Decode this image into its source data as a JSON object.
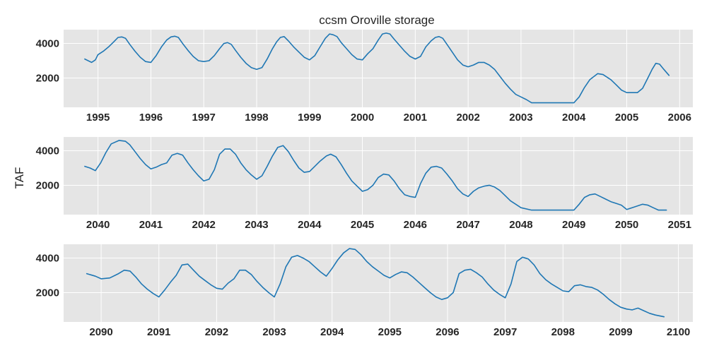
{
  "chart_data": {
    "type": "line",
    "title": "ccsm Oroville storage",
    "ylabel": "TAF",
    "grid": true,
    "colors": {
      "line": "#1f77b4",
      "panel": "#e5e5e5",
      "grid": "#ffffff"
    },
    "panels": [
      {
        "xlim": [
          1994.35,
          2006.25
        ],
        "ylim": [
          300,
          4800
        ],
        "xticks": [
          1995,
          1996,
          1997,
          1998,
          1999,
          2000,
          2001,
          2002,
          2003,
          2004,
          2005,
          2006
        ],
        "xtick_labels": [
          "1995",
          "1996",
          "1997",
          "1998",
          "1999",
          "2000",
          "2001",
          "2002",
          "2003",
          "2004",
          "2005",
          "2006"
        ],
        "yticks": [
          2000,
          4000
        ],
        "ytick_labels": [
          "2000",
          "4000"
        ],
        "series": [
          {
            "x": [
              1994.75,
              1994.88,
              1994.95,
              1995.0,
              1995.1,
              1995.2,
              1995.3,
              1995.38,
              1995.45,
              1995.52,
              1995.6,
              1995.7,
              1995.8,
              1995.9,
              1996.0,
              1996.1,
              1996.2,
              1996.3,
              1996.38,
              1996.45,
              1996.52,
              1996.6,
              1996.7,
              1996.8,
              1996.9,
              1997.0,
              1997.1,
              1997.2,
              1997.3,
              1997.38,
              1997.45,
              1997.52,
              1997.6,
              1997.7,
              1997.8,
              1997.9,
              1998.0,
              1998.1,
              1998.2,
              1998.3,
              1998.38,
              1998.45,
              1998.52,
              1998.6,
              1998.7,
              1998.8,
              1998.9,
              1999.0,
              1999.1,
              1999.2,
              1999.3,
              1999.38,
              1999.45,
              1999.52,
              1999.6,
              1999.7,
              1999.8,
              1999.9,
              2000.0,
              2000.1,
              2000.2,
              2000.3,
              2000.38,
              2000.45,
              2000.52,
              2000.6,
              2000.7,
              2000.8,
              2000.9,
              2001.0,
              2001.1,
              2001.2,
              2001.3,
              2001.38,
              2001.45,
              2001.52,
              2001.6,
              2001.7,
              2001.8,
              2001.9,
              2002.0,
              2002.1,
              2002.2,
              2002.3,
              2002.4,
              2002.5,
              2002.6,
              2002.7,
              2002.8,
              2002.9,
              2003.0,
              2003.1,
              2003.2,
              2003.3,
              2003.4,
              2003.6,
              2003.8,
              2004.0,
              2004.1,
              2004.2,
              2004.3,
              2004.45,
              2004.55,
              2004.7,
              2004.8,
              2004.9,
              2005.0,
              2005.1,
              2005.2,
              2005.3,
              2005.4,
              2005.48,
              2005.55,
              2005.62,
              2005.7,
              2005.8
            ],
            "y": [
              3100,
              2900,
              3050,
              3350,
              3550,
              3800,
              4100,
              4350,
              4380,
              4300,
              3950,
              3550,
              3200,
              2950,
              2900,
              3300,
              3800,
              4200,
              4380,
              4420,
              4350,
              4000,
              3600,
              3250,
              3000,
              2950,
              3000,
              3300,
              3700,
              4000,
              4050,
              3950,
              3600,
              3200,
              2850,
              2600,
              2500,
              2600,
              3100,
              3700,
              4100,
              4350,
              4400,
              4150,
              3800,
              3500,
              3200,
              3050,
              3300,
              3800,
              4300,
              4550,
              4500,
              4400,
              4050,
              3700,
              3350,
              3100,
              3050,
              3400,
              3700,
              4200,
              4550,
              4600,
              4550,
              4250,
              3900,
              3550,
              3250,
              3100,
              3250,
              3800,
              4150,
              4350,
              4400,
              4300,
              3950,
              3500,
              3050,
              2750,
              2650,
              2750,
              2900,
              2900,
              2750,
              2500,
              2100,
              1700,
              1350,
              1050,
              900,
              750,
              560,
              560,
              560,
              560,
              560,
              560,
              900,
              1450,
              1900,
              2250,
              2200,
              1900,
              1600,
              1300,
              1150,
              1150,
              1150,
              1400,
              2000,
              2500,
              2850,
              2800,
              2500,
              2150
            ]
          }
        ]
      },
      {
        "xlim": [
          2039.35,
          2051.25
        ],
        "ylim": [
          300,
          4800
        ],
        "xticks": [
          2040,
          2041,
          2042,
          2043,
          2044,
          2045,
          2046,
          2047,
          2048,
          2049,
          2050,
          2051
        ],
        "xtick_labels": [
          "2040",
          "2041",
          "2042",
          "2043",
          "2044",
          "2045",
          "2046",
          "2047",
          "2048",
          "2049",
          "2050",
          "2051"
        ],
        "yticks": [
          2000,
          4000
        ],
        "ytick_labels": [
          "2000",
          "4000"
        ],
        "series": [
          {
            "x": [
              2039.75,
              2039.85,
              2039.95,
              2040.05,
              2040.15,
              2040.25,
              2040.4,
              2040.52,
              2040.6,
              2040.7,
              2040.8,
              2040.9,
              2041.0,
              2041.1,
              2041.2,
              2041.3,
              2041.4,
              2041.5,
              2041.6,
              2041.7,
              2041.8,
              2041.9,
              2042.0,
              2042.1,
              2042.2,
              2042.3,
              2042.4,
              2042.5,
              2042.6,
              2042.7,
              2042.8,
              2042.9,
              2043.0,
              2043.1,
              2043.2,
              2043.3,
              2043.4,
              2043.5,
              2043.6,
              2043.7,
              2043.8,
              2043.9,
              2044.0,
              2044.1,
              2044.2,
              2044.32,
              2044.4,
              2044.5,
              2044.6,
              2044.7,
              2044.8,
              2044.9,
              2045.0,
              2045.1,
              2045.2,
              2045.3,
              2045.4,
              2045.5,
              2045.6,
              2045.7,
              2045.8,
              2045.9,
              2046.0,
              2046.1,
              2046.2,
              2046.3,
              2046.4,
              2046.5,
              2046.6,
              2046.7,
              2046.8,
              2046.9,
              2047.0,
              2047.1,
              2047.2,
              2047.3,
              2047.4,
              2047.5,
              2047.6,
              2047.7,
              2047.8,
              2047.9,
              2048.0,
              2048.2,
              2048.4,
              2048.6,
              2048.8,
              2049.0,
              2049.1,
              2049.2,
              2049.3,
              2049.4,
              2049.5,
              2049.6,
              2049.7,
              2049.8,
              2049.9,
              2050.0,
              2050.1,
              2050.2,
              2050.3,
              2050.4,
              2050.5,
              2050.6,
              2050.75
            ],
            "y": [
              3100,
              3000,
              2850,
              3300,
              3900,
              4400,
              4600,
              4550,
              4350,
              3950,
              3550,
              3200,
              2950,
              3050,
              3200,
              3300,
              3750,
              3850,
              3750,
              3300,
              2900,
              2550,
              2250,
              2350,
              2900,
              3800,
              4100,
              4100,
              3800,
              3300,
              2900,
              2600,
              2350,
              2550,
              3100,
              3700,
              4200,
              4300,
              3950,
              3450,
              3000,
              2750,
              2800,
              3100,
              3400,
              3700,
              3800,
              3650,
              3200,
              2700,
              2250,
              1950,
              1650,
              1750,
              2000,
              2450,
              2650,
              2600,
              2250,
              1800,
              1450,
              1350,
              1300,
              2100,
              2700,
              3050,
              3100,
              3000,
              2650,
              2250,
              1800,
              1500,
              1350,
              1650,
              1850,
              1950,
              2000,
              1900,
              1700,
              1400,
              1100,
              900,
              700,
              560,
              560,
              560,
              560,
              560,
              900,
              1300,
              1450,
              1500,
              1350,
              1200,
              1050,
              950,
              850,
              600,
              700,
              800,
              900,
              850,
              700,
              560,
              560
            ]
          }
        ]
      },
      {
        "xlim": [
          2089.35,
          2100.25
        ],
        "ylim": [
          300,
          4800
        ],
        "xticks": [
          2090,
          2091,
          2092,
          2093,
          2094,
          2095,
          2096,
          2097,
          2098,
          2099,
          2100
        ],
        "xtick_labels": [
          "2090",
          "2091",
          "2092",
          "2093",
          "2094",
          "2095",
          "2096",
          "2097",
          "2098",
          "2099",
          "2100"
        ],
        "yticks": [
          2000,
          4000
        ],
        "ytick_labels": [
          "2000",
          "4000"
        ],
        "series": [
          {
            "x": [
              2089.75,
              2089.9,
              2090.0,
              2090.15,
              2090.3,
              2090.4,
              2090.5,
              2090.6,
              2090.7,
              2090.8,
              2090.9,
              2091.0,
              2091.1,
              2091.2,
              2091.3,
              2091.4,
              2091.5,
              2091.6,
              2091.7,
              2091.8,
              2091.9,
              2092.0,
              2092.1,
              2092.2,
              2092.3,
              2092.4,
              2092.5,
              2092.6,
              2092.7,
              2092.8,
              2092.9,
              2093.0,
              2093.1,
              2093.2,
              2093.3,
              2093.4,
              2093.5,
              2093.6,
              2093.7,
              2093.8,
              2093.9,
              2094.0,
              2094.1,
              2094.2,
              2094.3,
              2094.4,
              2094.5,
              2094.6,
              2094.7,
              2094.8,
              2094.9,
              2095.0,
              2095.1,
              2095.2,
              2095.3,
              2095.4,
              2095.5,
              2095.6,
              2095.7,
              2095.8,
              2095.9,
              2096.0,
              2096.1,
              2096.2,
              2096.3,
              2096.4,
              2096.5,
              2096.6,
              2096.7,
              2096.8,
              2096.9,
              2097.0,
              2097.1,
              2097.2,
              2097.3,
              2097.4,
              2097.5,
              2097.6,
              2097.7,
              2097.8,
              2097.9,
              2098.0,
              2098.1,
              2098.2,
              2098.3,
              2098.4,
              2098.5,
              2098.6,
              2098.7,
              2098.8,
              2098.9,
              2099.0,
              2099.1,
              2099.2,
              2099.3,
              2099.4,
              2099.5,
              2099.6,
              2099.75
            ],
            "y": [
              3100,
              2950,
              2800,
              2850,
              3100,
              3300,
              3250,
              2900,
              2500,
              2200,
              1950,
              1750,
              2150,
              2600,
              3000,
              3600,
              3650,
              3300,
              2950,
              2700,
              2450,
              2250,
              2200,
              2550,
              2800,
              3300,
              3300,
              3050,
              2650,
              2300,
              2000,
              1750,
              2500,
              3500,
              4050,
              4150,
              4000,
              3800,
              3500,
              3200,
              2950,
              3400,
              3900,
              4300,
              4550,
              4500,
              4200,
              3800,
              3500,
              3250,
              3000,
              2850,
              3050,
              3200,
              3150,
              2900,
              2600,
              2300,
              2000,
              1750,
              1600,
              1700,
              2000,
              3100,
              3300,
              3350,
              3150,
              2900,
              2500,
              2150,
              1900,
              1700,
              2500,
              3800,
              4050,
              3950,
              3600,
              3100,
              2750,
              2500,
              2300,
              2100,
              2050,
              2400,
              2450,
              2350,
              2300,
              2150,
              1900,
              1600,
              1350,
              1150,
              1050,
              1000,
              1100,
              950,
              800,
              700,
              600
            ]
          }
        ]
      }
    ]
  }
}
